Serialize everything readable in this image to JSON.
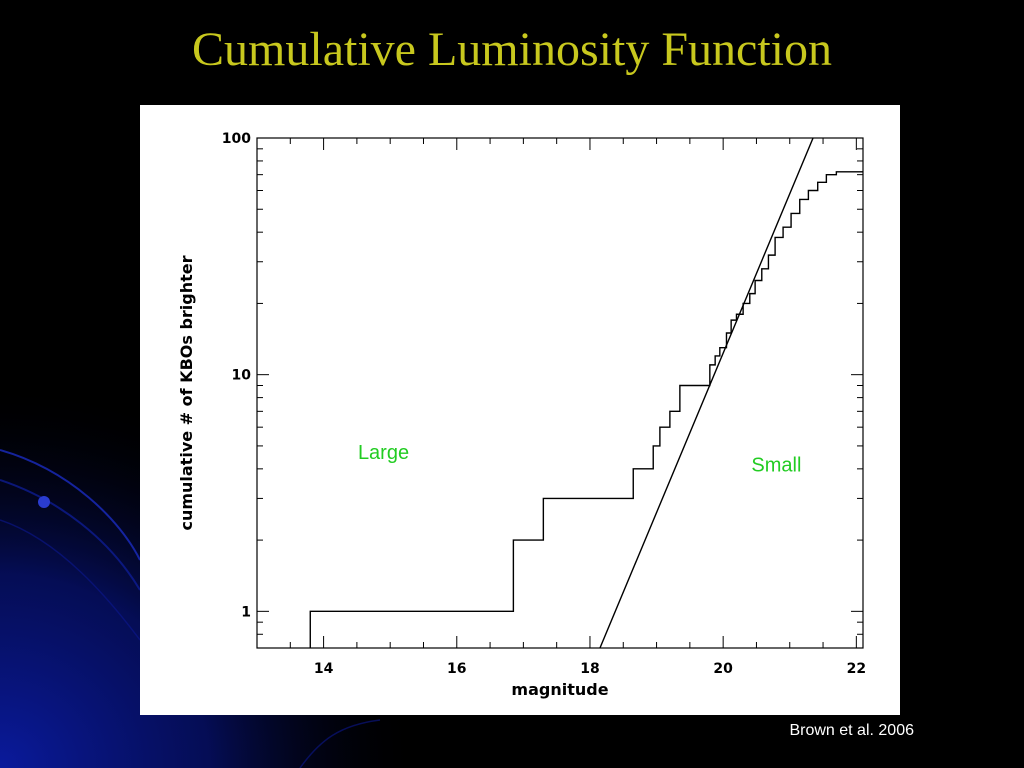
{
  "slide": {
    "title": "Cumulative Luminosity Function",
    "citation": "Brown et al. 2006"
  },
  "colors": {
    "background": "#000000",
    "title": "#c8c81e",
    "annotation": "#22cc22",
    "decor_blue": "#0a1a8c"
  },
  "chart_data": {
    "type": "line",
    "xlabel": "magnitude",
    "ylabel": "cumulative # of KBOs brighter",
    "xlim": [
      13,
      22.1
    ],
    "ylim": [
      0.7,
      100
    ],
    "yscale": "log",
    "xticks": [
      14,
      16,
      18,
      20,
      22
    ],
    "xtick_labels": [
      "14",
      "16",
      "18",
      "20",
      "22"
    ],
    "yticks": [
      1,
      10,
      100
    ],
    "ytick_labels": [
      "1",
      "10",
      "100"
    ],
    "grid": false,
    "annotations": [
      {
        "text": "Large",
        "x": 14.9,
        "y": 4.4
      },
      {
        "text": "Small",
        "x": 20.8,
        "y": 3.9
      }
    ],
    "series": [
      {
        "kind": "step",
        "x": [
          13.8,
          13.8,
          16.85,
          16.85,
          17.3,
          17.3,
          18.65,
          18.65,
          18.95,
          18.95,
          19.05,
          19.05,
          19.2,
          19.2,
          19.35,
          19.35,
          19.45,
          19.45,
          19.6,
          19.6,
          19.8,
          19.8,
          19.88,
          19.88,
          19.95,
          19.95,
          20.05,
          20.05,
          20.12,
          20.12,
          20.2,
          20.2,
          20.3,
          20.3,
          20.4,
          20.4,
          20.48,
          20.48,
          20.58,
          20.58,
          20.68,
          20.68,
          20.78,
          20.78,
          20.9,
          20.9,
          21.02,
          21.02,
          21.15,
          21.15,
          21.28,
          21.28,
          21.42,
          21.42,
          21.55,
          21.55,
          21.7,
          21.7,
          22.1
        ],
        "y": [
          0.7,
          1,
          1,
          2,
          2,
          3,
          3,
          4,
          4,
          5,
          5,
          6,
          6,
          7,
          7,
          9,
          9,
          9,
          9,
          9,
          9,
          11,
          11,
          12,
          12,
          13,
          13,
          15,
          15,
          17,
          17,
          18,
          18,
          20,
          20,
          22,
          22,
          25,
          25,
          28,
          28,
          32,
          32,
          38,
          38,
          42,
          42,
          48,
          48,
          55,
          55,
          60,
          60,
          65,
          65,
          70,
          70,
          72,
          72
        ]
      },
      {
        "kind": "line",
        "x": [
          18.15,
          21.35
        ],
        "y": [
          0.7,
          100
        ]
      }
    ]
  }
}
